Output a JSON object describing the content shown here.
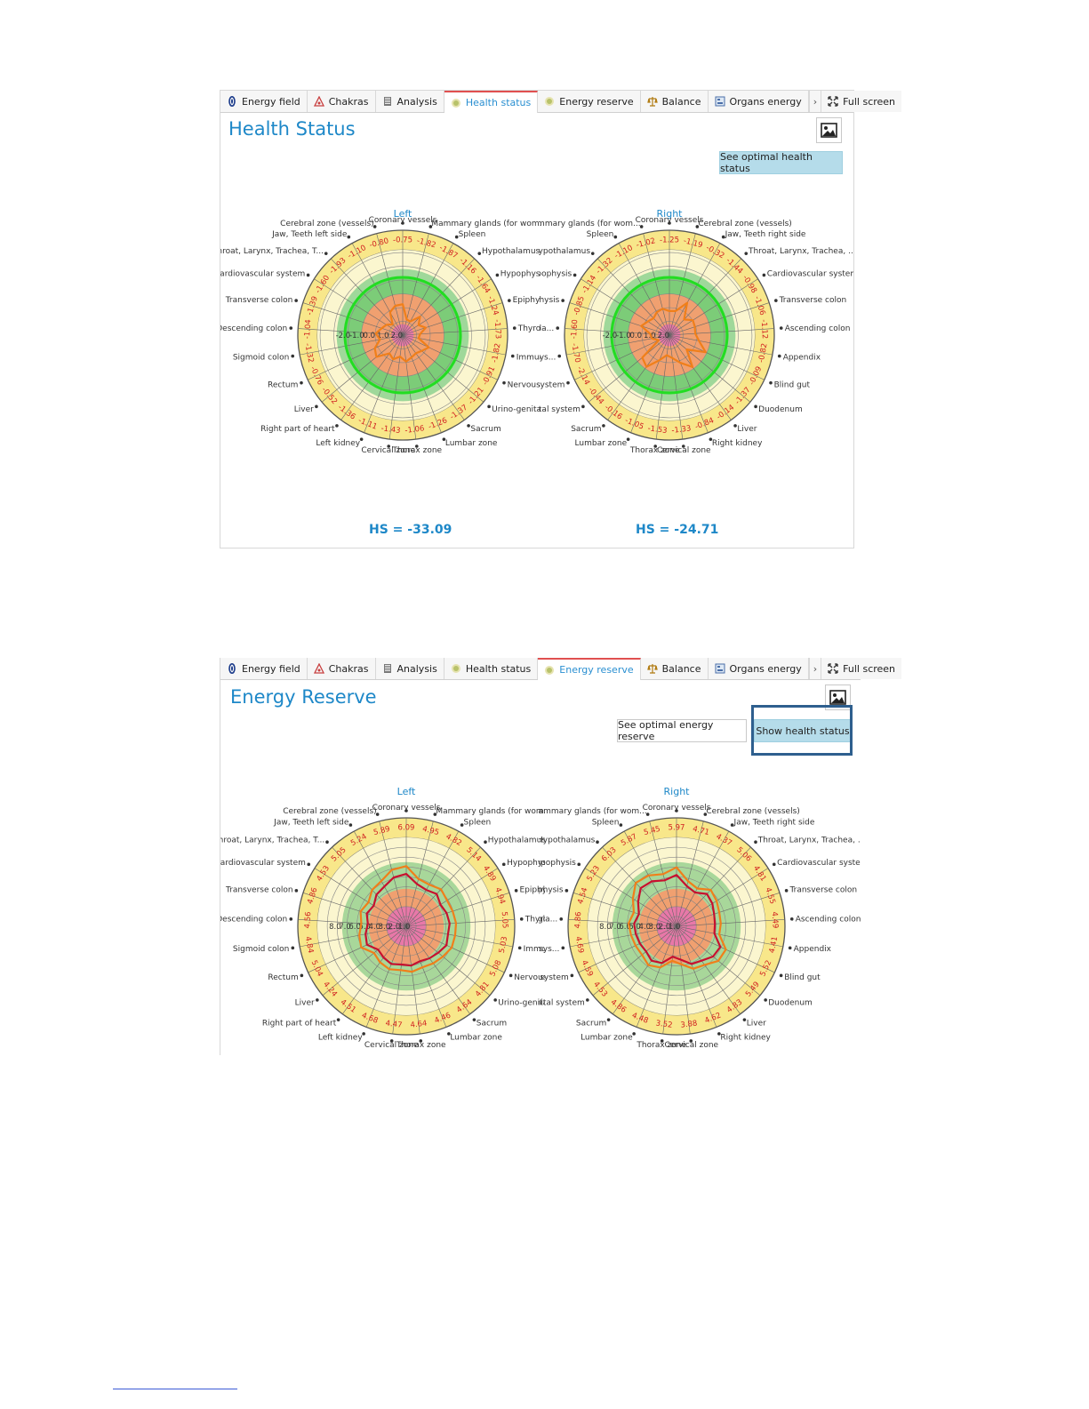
{
  "tabs": [
    {
      "label": "Energy field",
      "icon": "energy-field-icon"
    },
    {
      "label": "Chakras",
      "icon": "chakras-icon"
    },
    {
      "label": "Analysis",
      "icon": "analysis-icon"
    },
    {
      "label": "Health status",
      "icon": "health-status-icon"
    },
    {
      "label": "Energy reserve",
      "icon": "energy-reserve-icon"
    },
    {
      "label": "Balance",
      "icon": "balance-icon"
    },
    {
      "label": "Organs energy",
      "icon": "organs-energy-icon"
    }
  ],
  "fullscreen_label": "Full screen",
  "health_panel": {
    "title": "Health Status",
    "active_tab": "Health status",
    "optimal_button": "See optimal health status",
    "hs_left": "HS = -33.09",
    "hs_right": "HS = -24.71"
  },
  "energy_panel": {
    "title": "Energy Reserve",
    "active_tab": "Energy reserve",
    "optimal_button": "See optimal energy reserve",
    "show_button": "Show health status"
  },
  "colors": {
    "accent": "#1e88c8",
    "orange": "#f07f1a",
    "red": "#c8102e",
    "green": "#22dd22",
    "highlight": "#2e5f8e"
  },
  "chart_data": [
    {
      "type": "radar",
      "title": "Left",
      "chart": "health-left",
      "ring_labels": [
        "-2.0",
        "-1.0",
        "0.0",
        "1.0",
        "2.0"
      ],
      "labels": [
        "Coronary vessels",
        "Mammary glands (for wom...",
        "Spleen",
        "Hypothalamus",
        "Hypophysis",
        "Epiphysis",
        "Thyroid gla...",
        "Immune sys...",
        "Nervous system",
        "Urino-genital system",
        "Sacrum",
        "Lumbar zone",
        "Thorax zone",
        "Cervical zone",
        "Left kidney",
        "Right part of heart",
        "Liver",
        "Rectum",
        "Sigmoid colon",
        "Descending colon",
        "Transverse colon",
        "Cardiovascular system",
        "Throat, Larynx, Trachea, T...",
        "Jaw, Teeth left side",
        "Cerebral zone (vessels)"
      ],
      "values": [
        -0.75,
        -1.82,
        -1.87,
        -1.16,
        -1.64,
        -1.24,
        -1.73,
        -1.82,
        -0.91,
        -1.21,
        -1.37,
        -1.26,
        -1.06,
        -1.43,
        -1.11,
        -1.36,
        -0.52,
        -0.76,
        -1.32,
        -1.04,
        -1.39,
        -1.6,
        -1.93,
        -1.1,
        -0.8
      ],
      "series": [
        {
          "values": [
            -0.75,
            -1.82,
            -1.87,
            -1.16,
            -1.64,
            -1.24,
            -1.73,
            -1.82,
            -0.91,
            -1.21,
            -1.37,
            -1.26,
            -1.06,
            -1.43,
            -1.11,
            -1.36,
            -0.52,
            -0.76,
            -1.32,
            -1.04,
            -1.39,
            -1.6,
            -1.93,
            -1.1,
            -0.8
          ]
        }
      ]
    },
    {
      "type": "radar",
      "title": "Right",
      "chart": "health-right",
      "ring_labels": [
        "-2.0",
        "-1.0",
        "0.0",
        "1.0",
        "2.0"
      ],
      "labels": [
        "Coronary vessels",
        "Cerebral zone (vessels)",
        "Jaw, Teeth right side",
        "Throat, Larynx, Trachea, ...",
        "Cardiovascular system",
        "Transverse colon",
        "Ascending colon",
        "Appendix",
        "Blind gut",
        "Duodenum",
        "Liver",
        "Right kidney",
        "Cervical zone",
        "Thorax zone",
        "Lumbar zone",
        "Sacrum",
        "Urino-genital system",
        "Nervous system",
        "Immune sys...",
        "Thyroid gla...",
        "Epiphysis",
        "Hypophysis",
        "Hypothalamus",
        "Spleen",
        "Mammary glands (for wom..."
      ],
      "values": [
        -1.25,
        -1.19,
        -0.32,
        -1.44,
        -0.98,
        -1.06,
        -1.12,
        -0.82,
        -0.09,
        -1.37,
        -0.14,
        -0.84,
        -1.33,
        -1.53,
        -1.05,
        -0.16,
        -0.44,
        -2.14,
        -1.7,
        -1.6,
        -0.85,
        -1.14,
        -1.32,
        -1.1,
        -1.02
      ],
      "series": [
        {
          "values": [
            -1.25,
            -1.19,
            -0.32,
            -1.44,
            -0.98,
            -1.06,
            -1.12,
            -0.82,
            -0.09,
            -1.37,
            -0.14,
            -0.84,
            -1.33,
            -1.53,
            -1.05,
            -0.16,
            -0.44,
            -2.14,
            -1.7,
            -1.6,
            -0.85,
            -1.14,
            -1.32,
            -1.1,
            -1.02
          ]
        }
      ]
    },
    {
      "type": "radar",
      "title": "Left",
      "chart": "energy-left",
      "ring_labels": [
        "1.0",
        "2.0",
        "3.0",
        "4.0",
        "5.0",
        "6.0",
        "7.0",
        "8.0"
      ],
      "labels": [
        "Coronary vessels",
        "Mammary glands (for wom...",
        "Spleen",
        "Hypothalamus",
        "Hypophysis",
        "Epiphysis",
        "Thyroid gla...",
        "Immune sys...",
        "Nervous system",
        "Urino-genital system",
        "Sacrum",
        "Lumbar zone",
        "Thorax zone",
        "Cervical zone",
        "Left kidney",
        "Right part of heart",
        "Liver",
        "Rectum",
        "Sigmoid colon",
        "Descending colon",
        "Transverse colon",
        "Cardiovascular system",
        "Throat, Larynx, Trachea, T...",
        "Jaw, Teeth left side",
        "Cerebral zone (vessels)"
      ],
      "values": [
        6.09,
        4.95,
        4.82,
        5.14,
        4.89,
        4.94,
        5.05,
        5.03,
        5.08,
        4.81,
        4.64,
        4.46,
        4.64,
        4.47,
        4.68,
        4.51,
        4.24,
        5.04,
        4.84,
        4.56,
        4.86,
        4.53,
        5.05,
        5.24,
        5.89
      ],
      "series": [
        {
          "values": [
            6.09,
            4.95,
            4.82,
            5.14,
            4.89,
            4.94,
            5.05,
            5.03,
            5.08,
            4.81,
            4.64,
            4.46,
            4.64,
            4.47,
            4.68,
            4.51,
            4.24,
            5.04,
            4.84,
            4.56,
            4.86,
            4.53,
            5.05,
            5.24,
            5.89
          ]
        },
        {
          "values": [
            5.3,
            4.4,
            4.2,
            4.5,
            4.1,
            4.3,
            4.4,
            4.3,
            4.5,
            4.2,
            4.0,
            3.8,
            4.0,
            3.9,
            4.1,
            3.9,
            3.7,
            4.4,
            4.2,
            3.9,
            4.2,
            3.9,
            4.4,
            4.6,
            5.1
          ]
        }
      ]
    },
    {
      "type": "radar",
      "title": "Right",
      "chart": "energy-right",
      "ring_labels": [
        "1.0",
        "2.0",
        "3.0",
        "4.0",
        "5.0",
        "6.0",
        "7.0",
        "8.0"
      ],
      "labels": [
        "Coronary vessels",
        "Cerebral zone (vessels)",
        "Jaw, Teeth right side",
        "Throat, Larynx, Trachea, ...",
        "Cardiovascular system",
        "Transverse colon",
        "Ascending colon",
        "Appendix",
        "Blind gut",
        "Duodenum",
        "Liver",
        "Right kidney",
        "Cervical zone",
        "Thorax zone",
        "Lumbar zone",
        "Sacrum",
        "Urino-genital system",
        "Nervous system",
        "Immune sys...",
        "Thyroid gla...",
        "Epiphysis",
        "Hypophysis",
        "Hypothalamus",
        "Spleen",
        "Mammary glands (for wom..."
      ],
      "values": [
        5.97,
        4.71,
        4.37,
        5.06,
        4.81,
        4.55,
        4.49,
        4.41,
        5.52,
        5.49,
        4.83,
        4.62,
        3.88,
        3.52,
        4.48,
        4.86,
        4.53,
        4.59,
        4.69,
        4.86,
        4.54,
        5.23,
        6.03,
        5.87,
        5.45
      ],
      "series": [
        {
          "values": [
            5.97,
            4.71,
            4.37,
            5.06,
            4.81,
            4.55,
            4.49,
            4.41,
            5.52,
            5.49,
            4.83,
            4.62,
            3.88,
            3.52,
            4.48,
            4.86,
            4.53,
            4.59,
            4.69,
            4.86,
            4.54,
            5.23,
            6.03,
            5.87,
            5.45
          ]
        },
        {
          "values": [
            5.2,
            4.2,
            3.9,
            4.5,
            4.3,
            4.0,
            3.9,
            3.9,
            4.9,
            4.8,
            4.3,
            4.1,
            3.4,
            3.1,
            4.0,
            4.3,
            4.0,
            4.1,
            4.2,
            4.3,
            4.0,
            4.6,
            5.3,
            5.2,
            4.8
          ]
        }
      ]
    }
  ]
}
